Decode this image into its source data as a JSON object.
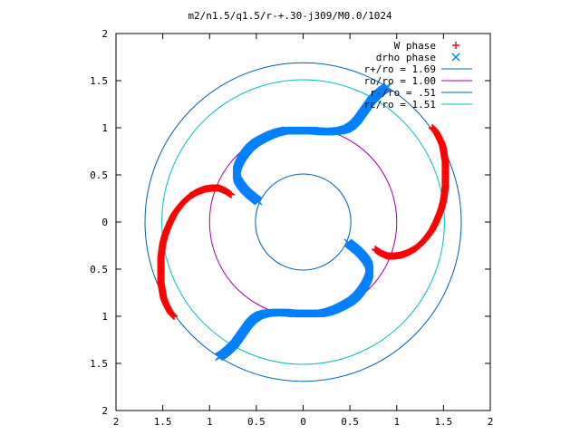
{
  "chart_data": {
    "type": "scatter",
    "title": "m2/n1.5/q1.5/r-+.30-j309/M0.0/1024",
    "xlim": [
      -2,
      2
    ],
    "ylim": [
      -2,
      2
    ],
    "x_ticks": [
      {
        "value": -2,
        "label": "2"
      },
      {
        "value": -1.5,
        "label": "1.5"
      },
      {
        "value": -1,
        "label": "1"
      },
      {
        "value": -0.5,
        "label": "0.5"
      },
      {
        "value": 0,
        "label": "0"
      },
      {
        "value": 0.5,
        "label": "0.5"
      },
      {
        "value": 1,
        "label": "1"
      },
      {
        "value": 1.5,
        "label": "1.5"
      },
      {
        "value": 2,
        "label": "2"
      }
    ],
    "y_ticks": [
      {
        "value": 2,
        "label": "2"
      },
      {
        "value": 1.5,
        "label": "1.5"
      },
      {
        "value": 1,
        "label": "1"
      },
      {
        "value": 0.5,
        "label": "0.5"
      },
      {
        "value": 0,
        "label": "0"
      },
      {
        "value": -0.5,
        "label": "0.5"
      },
      {
        "value": -1,
        "label": "1"
      },
      {
        "value": -1.5,
        "label": "1.5"
      },
      {
        "value": -2,
        "label": "2"
      }
    ],
    "grid": false,
    "legend_position": "top-right",
    "series": [
      {
        "name": "W phase",
        "kind": "points",
        "marker": "plus",
        "color": "#ff0000",
        "symmetry": "point-reflection",
        "points": [
          [
            1.38,
            1.0
          ],
          [
            1.41,
            0.97
          ],
          [
            1.43,
            0.94
          ],
          [
            1.45,
            0.9
          ],
          [
            1.47,
            0.86
          ],
          [
            1.49,
            0.81
          ],
          [
            1.5,
            0.76
          ],
          [
            1.51,
            0.7
          ],
          [
            1.52,
            0.64
          ],
          [
            1.52,
            0.58
          ],
          [
            1.52,
            0.51
          ],
          [
            1.52,
            0.45
          ],
          [
            1.52,
            0.38
          ],
          [
            1.51,
            0.3
          ],
          [
            1.5,
            0.23
          ],
          [
            1.48,
            0.15
          ],
          [
            1.45,
            0.07
          ],
          [
            1.42,
            0.0
          ],
          [
            1.38,
            -0.08
          ],
          [
            1.33,
            -0.15
          ],
          [
            1.27,
            -0.22
          ],
          [
            1.2,
            -0.28
          ],
          [
            1.13,
            -0.32
          ],
          [
            1.05,
            -0.35
          ],
          [
            0.98,
            -0.36
          ],
          [
            0.9,
            -0.36
          ],
          [
            0.83,
            -0.33
          ],
          [
            0.77,
            -0.29
          ]
        ]
      },
      {
        "name": "drho phase",
        "kind": "points",
        "marker": "cross",
        "color": "#0080ff",
        "symmetry": "point-reflection",
        "points": [
          [
            -0.48,
            0.22
          ],
          [
            -0.53,
            0.26
          ],
          [
            -0.58,
            0.3
          ],
          [
            -0.63,
            0.35
          ],
          [
            -0.67,
            0.4
          ],
          [
            -0.7,
            0.45
          ],
          [
            -0.71,
            0.5
          ],
          [
            -0.71,
            0.55
          ],
          [
            -0.69,
            0.61
          ],
          [
            -0.66,
            0.67
          ],
          [
            -0.62,
            0.73
          ],
          [
            -0.57,
            0.79
          ],
          [
            -0.51,
            0.84
          ],
          [
            -0.44,
            0.88
          ],
          [
            -0.36,
            0.92
          ],
          [
            -0.28,
            0.95
          ],
          [
            -0.19,
            0.97
          ],
          [
            -0.1,
            0.97
          ],
          [
            0.0,
            0.97
          ],
          [
            0.1,
            0.97
          ],
          [
            0.2,
            0.96
          ],
          [
            0.3,
            0.96
          ],
          [
            0.4,
            0.97
          ],
          [
            0.47,
            0.99
          ],
          [
            0.53,
            1.03
          ],
          [
            0.58,
            1.08
          ],
          [
            0.63,
            1.15
          ],
          [
            0.68,
            1.22
          ],
          [
            0.73,
            1.29
          ],
          [
            0.79,
            1.35
          ],
          [
            0.85,
            1.4
          ],
          [
            0.9,
            1.43
          ]
        ]
      },
      {
        "name": "r+/ro = 1.69",
        "kind": "circle",
        "radius": 1.69,
        "color": "#0060ad"
      },
      {
        "name": "ro/ro = 1.00",
        "kind": "circle",
        "radius": 1.0,
        "color": "#a000a0"
      },
      {
        "name": "r-/ro = .51",
        "kind": "circle",
        "radius": 0.51,
        "color": "#0060ad"
      },
      {
        "name": "rc/ro = 1.51",
        "kind": "circle",
        "radius": 1.51,
        "color": "#00c0c0"
      }
    ]
  }
}
